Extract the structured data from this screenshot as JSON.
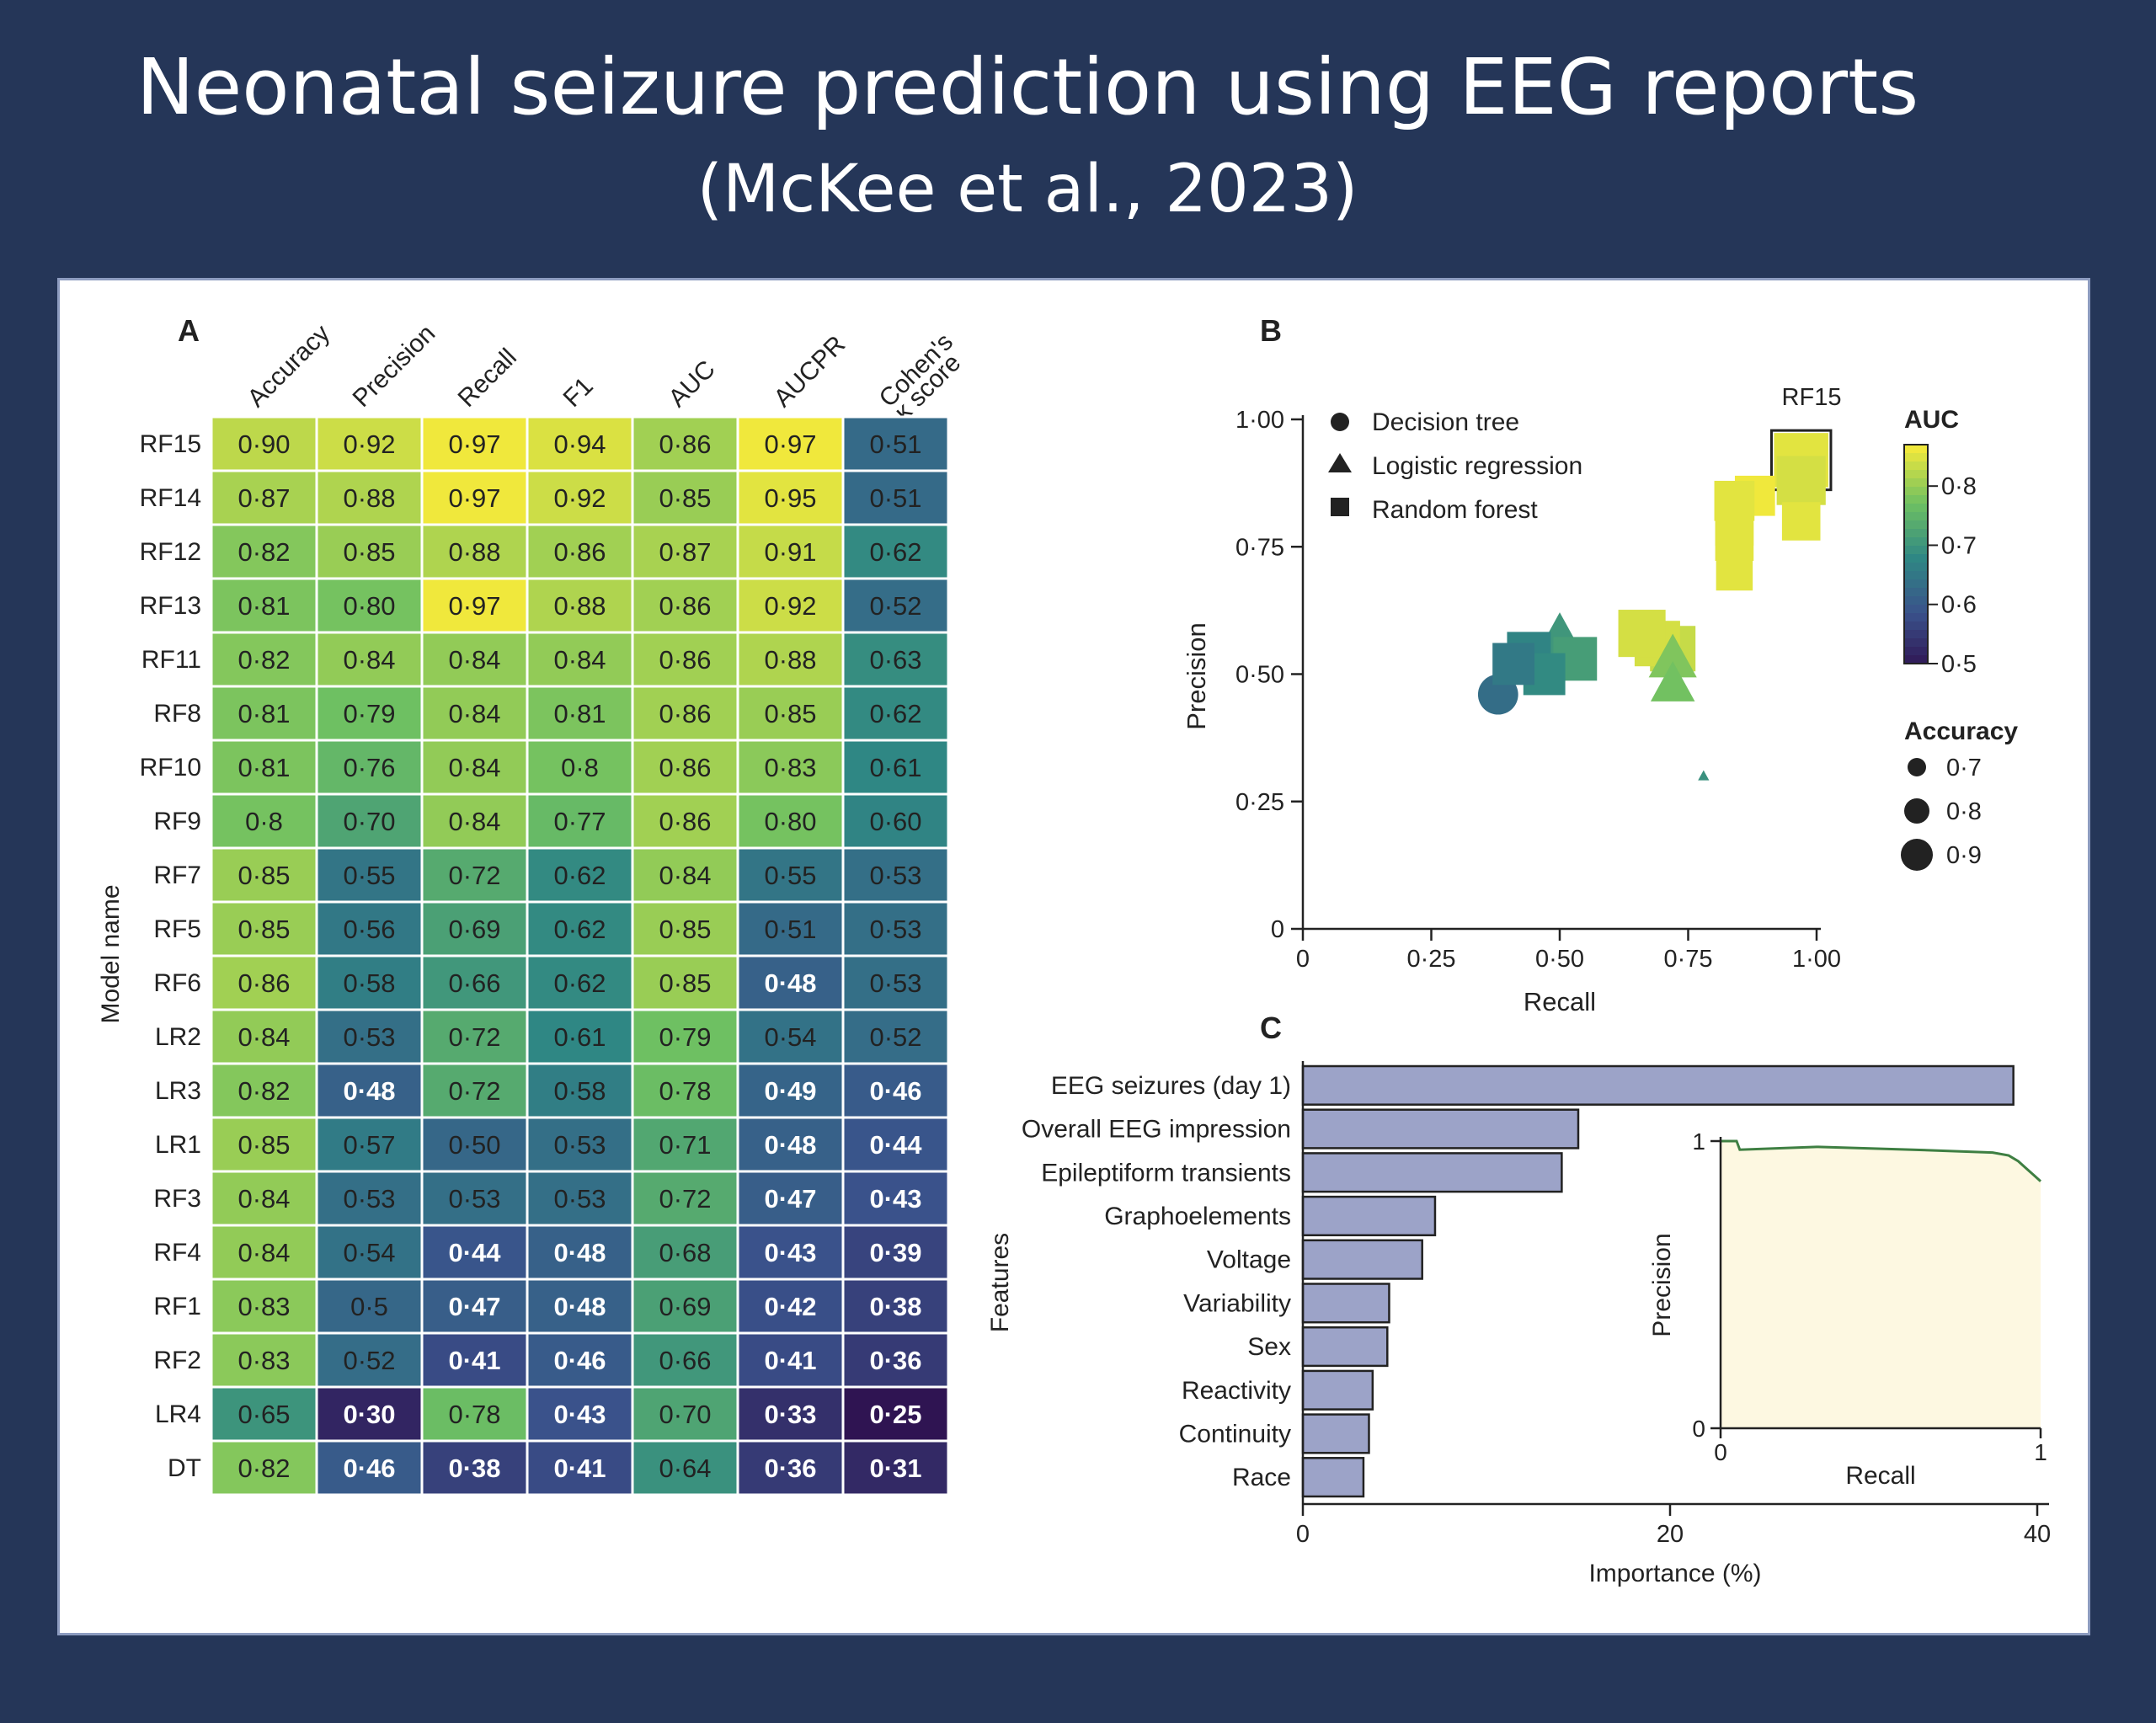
{
  "slide": {
    "title": "Neonatal seizure prediction using EEG reports",
    "subtitle": "(McKee et al., 2023)"
  },
  "colors": {
    "background": "#253658",
    "panel": "#ffffff",
    "bar_fill": "#9ca3c8",
    "inset_fill": "#fdf8e1",
    "inset_line": "#3e7f42"
  },
  "chart_data": [
    {
      "panel": "A",
      "type": "heatmap",
      "columns": [
        "Accuracy",
        "Precision",
        "Recall",
        "F1",
        "AUC",
        "AUCPR",
        "Cohen's κ score"
      ],
      "rows": [
        "RF15",
        "RF14",
        "RF12",
        "RF13",
        "RF11",
        "RF8",
        "RF10",
        "RF9",
        "RF7",
        "RF5",
        "RF6",
        "LR2",
        "LR3",
        "LR1",
        "RF3",
        "RF4",
        "RF1",
        "RF2",
        "LR4",
        "DT"
      ],
      "ylabel": "Model name",
      "values": [
        [
          "0·90",
          "0·92",
          "0·97",
          "0·94",
          "0·86",
          "0·97",
          "0·51"
        ],
        [
          "0·87",
          "0·88",
          "0·97",
          "0·92",
          "0·85",
          "0·95",
          "0·51"
        ],
        [
          "0·82",
          "0·85",
          "0·88",
          "0·86",
          "0·87",
          "0·91",
          "0·62"
        ],
        [
          "0·81",
          "0·80",
          "0·97",
          "0·88",
          "0·86",
          "0·92",
          "0·52"
        ],
        [
          "0·82",
          "0·84",
          "0·84",
          "0·84",
          "0·86",
          "0·88",
          "0·63"
        ],
        [
          "0·81",
          "0·79",
          "0·84",
          "0·81",
          "0·86",
          "0·85",
          "0·62"
        ],
        [
          "0·81",
          "0·76",
          "0·84",
          "0·8",
          "0·86",
          "0·83",
          "0·61"
        ],
        [
          "0·8",
          "0·70",
          "0·84",
          "0·77",
          "0·86",
          "0·80",
          "0·60"
        ],
        [
          "0·85",
          "0·55",
          "0·72",
          "0·62",
          "0·84",
          "0·55",
          "0·53"
        ],
        [
          "0·85",
          "0·56",
          "0·69",
          "0·62",
          "0·85",
          "0·51",
          "0·53"
        ],
        [
          "0·86",
          "0·58",
          "0·66",
          "0·62",
          "0·85",
          "0·48",
          "0·53"
        ],
        [
          "0·84",
          "0·53",
          "0·72",
          "0·61",
          "0·79",
          "0·54",
          "0·52"
        ],
        [
          "0·82",
          "0·48",
          "0·72",
          "0·58",
          "0·78",
          "0·49",
          "0·46"
        ],
        [
          "0·85",
          "0·57",
          "0·50",
          "0·53",
          "0·71",
          "0·48",
          "0·44"
        ],
        [
          "0·84",
          "0·53",
          "0·53",
          "0·53",
          "0·72",
          "0·47",
          "0·43"
        ],
        [
          "0·84",
          "0·54",
          "0·44",
          "0·48",
          "0·68",
          "0·43",
          "0·39"
        ],
        [
          "0·83",
          "0·5",
          "0·47",
          "0·48",
          "0·69",
          "0·42",
          "0·38"
        ],
        [
          "0·83",
          "0·52",
          "0·41",
          "0·46",
          "0·66",
          "0·41",
          "0·36"
        ],
        [
          "0·65",
          "0·30",
          "0·78",
          "0·43",
          "0·70",
          "0·33",
          "0·25"
        ],
        [
          "0·82",
          "0·46",
          "0·38",
          "0·41",
          "0·64",
          "0·36",
          "0·31"
        ]
      ]
    },
    {
      "panel": "B",
      "type": "scatter",
      "xlabel": "Recall",
      "ylabel": "Precision",
      "xlim": [
        0,
        1
      ],
      "ylim": [
        0,
        1
      ],
      "xticks": [
        "0",
        "0·25",
        "0·50",
        "0·75",
        "1·00"
      ],
      "yticks": [
        "0",
        "0·25",
        "0·50",
        "0·75",
        "1·00"
      ],
      "annotation": "RF15",
      "legend_shapes": [
        "Decision tree",
        "Logistic regression",
        "Random forest"
      ],
      "legend_auc_title": "AUC",
      "legend_auc_ticks": [
        "0·8",
        "0·7",
        "0·6",
        "0·5"
      ],
      "auc_range": [
        0.5,
        0.87
      ],
      "legend_acc_title": "Accuracy",
      "legend_acc_ticks": [
        "0·7",
        "0·8",
        "0·9"
      ],
      "points": [
        {
          "model": "DT",
          "shape": "circle",
          "recall": 0.38,
          "precision": 0.46,
          "auc": 0.64,
          "accuracy": 0.82
        },
        {
          "model": "RF15",
          "shape": "square",
          "recall": 0.97,
          "precision": 0.92,
          "auc": 0.86,
          "accuracy": 0.9
        },
        {
          "model": "RF14",
          "shape": "square",
          "recall": 0.97,
          "precision": 0.88,
          "auc": 0.85,
          "accuracy": 0.87
        },
        {
          "model": "RF12",
          "shape": "square",
          "recall": 0.88,
          "precision": 0.85,
          "auc": 0.87,
          "accuracy": 0.82
        },
        {
          "model": "RF13",
          "shape": "square",
          "recall": 0.97,
          "precision": 0.8,
          "auc": 0.86,
          "accuracy": 0.81
        },
        {
          "model": "RF11",
          "shape": "square",
          "recall": 0.84,
          "precision": 0.84,
          "auc": 0.86,
          "accuracy": 0.82
        },
        {
          "model": "RF8",
          "shape": "square",
          "recall": 0.84,
          "precision": 0.79,
          "auc": 0.86,
          "accuracy": 0.81
        },
        {
          "model": "RF10",
          "shape": "square",
          "recall": 0.84,
          "precision": 0.76,
          "auc": 0.86,
          "accuracy": 0.81
        },
        {
          "model": "RF9",
          "shape": "square",
          "recall": 0.84,
          "precision": 0.7,
          "auc": 0.86,
          "accuracy": 0.8
        },
        {
          "model": "RF7",
          "shape": "square",
          "recall": 0.72,
          "precision": 0.55,
          "auc": 0.84,
          "accuracy": 0.85
        },
        {
          "model": "RF5",
          "shape": "square",
          "recall": 0.69,
          "precision": 0.56,
          "auc": 0.85,
          "accuracy": 0.85
        },
        {
          "model": "RF6",
          "shape": "square",
          "recall": 0.66,
          "precision": 0.58,
          "auc": 0.85,
          "accuracy": 0.86
        },
        {
          "model": "LR2",
          "shape": "triangle",
          "recall": 0.72,
          "precision": 0.53,
          "auc": 0.79,
          "accuracy": 0.84
        },
        {
          "model": "LR3",
          "shape": "triangle",
          "recall": 0.72,
          "precision": 0.48,
          "auc": 0.78,
          "accuracy": 0.82
        },
        {
          "model": "LR1",
          "shape": "triangle",
          "recall": 0.5,
          "precision": 0.57,
          "auc": 0.71,
          "accuracy": 0.85
        },
        {
          "model": "RF3",
          "shape": "square",
          "recall": 0.53,
          "precision": 0.53,
          "auc": 0.72,
          "accuracy": 0.84
        },
        {
          "model": "RF4",
          "shape": "square",
          "recall": 0.44,
          "precision": 0.54,
          "auc": 0.68,
          "accuracy": 0.84
        },
        {
          "model": "RF1",
          "shape": "square",
          "recall": 0.47,
          "precision": 0.5,
          "auc": 0.69,
          "accuracy": 0.83
        },
        {
          "model": "RF2",
          "shape": "square",
          "recall": 0.41,
          "precision": 0.52,
          "auc": 0.66,
          "accuracy": 0.83
        },
        {
          "model": "LR4",
          "shape": "triangle",
          "recall": 0.78,
          "precision": 0.3,
          "auc": 0.7,
          "accuracy": 0.65
        }
      ]
    },
    {
      "panel": "C",
      "type": "bar",
      "orientation": "horizontal",
      "xlabel": "Importance (%)",
      "ylabel": "Features",
      "xlim": [
        0,
        40
      ],
      "xticks": [
        "0",
        "20",
        "40"
      ],
      "categories": [
        "EEG seizures (day 1)",
        "Overall EEG impression",
        "Epileptiform transients",
        "Graphoelements",
        "Voltage",
        "Variability",
        "Sex",
        "Reactivity",
        "Continuity",
        "Race"
      ],
      "values": [
        38.7,
        15.0,
        14.1,
        7.2,
        6.5,
        4.7,
        4.6,
        3.8,
        3.6,
        3.3
      ]
    },
    {
      "panel": "C-inset",
      "type": "line",
      "xlabel": "Recall",
      "ylabel": "Precision",
      "xlim": [
        0,
        1
      ],
      "ylim": [
        0,
        1
      ],
      "xticks": [
        "0",
        "1"
      ],
      "yticks": [
        "0",
        "1"
      ],
      "x": [
        0,
        0.05,
        0.06,
        0.3,
        0.6,
        0.85,
        0.9,
        0.93,
        0.96,
        0.98,
        1.0
      ],
      "y": [
        1.0,
        1.0,
        0.97,
        0.98,
        0.97,
        0.96,
        0.95,
        0.93,
        0.9,
        0.88,
        0.86
      ]
    }
  ]
}
